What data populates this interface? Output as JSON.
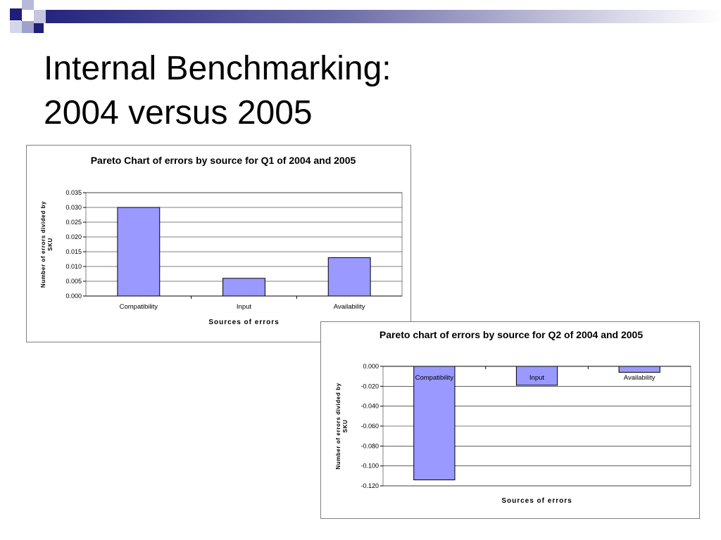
{
  "slide": {
    "title_line1": "Internal Benchmarking:",
    "title_line2": "2004 versus 2005",
    "accent_color": "#1f1f7a"
  },
  "chart_data": [
    {
      "type": "bar",
      "title": "Pareto Chart of errors by source for Q1 of 2004 and 2005",
      "xlabel": "Sources of errors",
      "ylabel": "Number of errors divided by SKU",
      "categories": [
        "Compatibility",
        "Input",
        "Availability"
      ],
      "values": [
        0.03,
        0.006,
        0.013
      ],
      "ylim": [
        0,
        0.035
      ],
      "yticks": [
        "0.000",
        "0.005",
        "0.010",
        "0.015",
        "0.020",
        "0.025",
        "0.030",
        "0.035"
      ],
      "grid": true,
      "bar_color": "#9999ff"
    },
    {
      "type": "bar",
      "title": "Pareto chart of errors by source for Q2 of 2004 and 2005",
      "xlabel": "Sources of errors",
      "ylabel": "Number of errors divided by SKU",
      "categories": [
        "Compatibility",
        "Input",
        "Availability"
      ],
      "values": [
        -0.114,
        -0.019,
        -0.006
      ],
      "ylim": [
        -0.12,
        0
      ],
      "yticks": [
        "0.000",
        "-0.020",
        "-0.040",
        "-0.060",
        "-0.080",
        "-0.100",
        "-0.120"
      ],
      "grid": true,
      "bar_color": "#9999ff"
    }
  ]
}
